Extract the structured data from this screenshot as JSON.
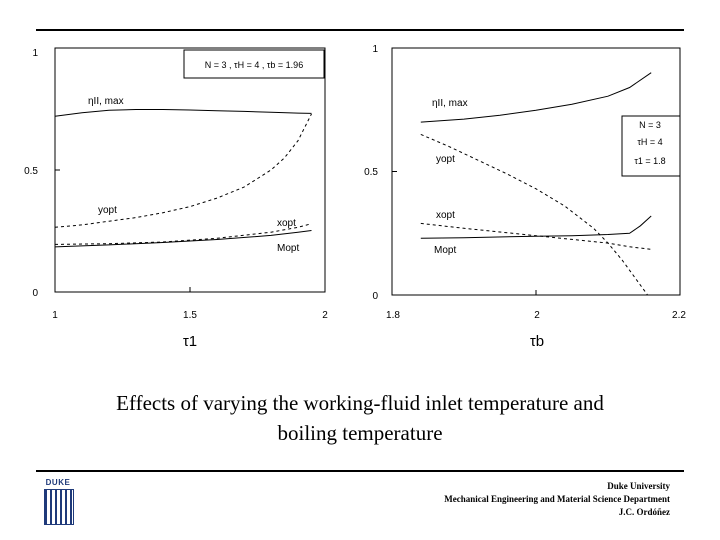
{
  "caption": {
    "line1": "Effects of varying the working-fluid inlet temperature and",
    "line2": "boiling temperature"
  },
  "footer": {
    "line1": "Duke University",
    "line2": "Mechanical Engineering and Material Science Department",
    "line3": "J.C. Ordóñez"
  },
  "logo": {
    "text": "DUKE",
    "color": "#1f3a7a"
  },
  "chart_data": [
    {
      "type": "line",
      "xlabel": "τ1",
      "ylabel": "",
      "xlim": [
        1,
        2
      ],
      "ylim": [
        0,
        1
      ],
      "xticks": [
        "1",
        "1.5",
        "2"
      ],
      "yticks": [
        "0",
        "0.5",
        "1"
      ],
      "params_box": "N = 3 ,  τH = 4 ,  τb = 1.96",
      "series": [
        {
          "name": "ηII, max",
          "style": "solid",
          "x": [
            1.0,
            1.1,
            1.2,
            1.3,
            1.4,
            1.5,
            1.6,
            1.7,
            1.8,
            1.9,
            1.95
          ],
          "y": [
            0.72,
            0.735,
            0.745,
            0.748,
            0.748,
            0.746,
            0.743,
            0.74,
            0.737,
            0.733,
            0.732
          ]
        },
        {
          "name": "yopt",
          "style": "dashed",
          "x": [
            1.0,
            1.1,
            1.2,
            1.3,
            1.4,
            1.5,
            1.6,
            1.7,
            1.8,
            1.85,
            1.9,
            1.95
          ],
          "y": [
            0.265,
            0.275,
            0.29,
            0.305,
            0.325,
            0.35,
            0.385,
            0.43,
            0.5,
            0.55,
            0.62,
            0.73
          ]
        },
        {
          "name": "xopt",
          "style": "dashed",
          "x": [
            1.0,
            1.2,
            1.4,
            1.6,
            1.8,
            1.9,
            1.95
          ],
          "y": [
            0.195,
            0.198,
            0.205,
            0.22,
            0.245,
            0.265,
            0.28
          ]
        },
        {
          "name": "Mopt",
          "style": "solid",
          "x": [
            1.0,
            1.2,
            1.4,
            1.6,
            1.8,
            1.9,
            1.95
          ],
          "y": [
            0.185,
            0.193,
            0.203,
            0.215,
            0.232,
            0.245,
            0.252
          ]
        }
      ]
    },
    {
      "type": "line",
      "xlabel": "τb",
      "ylabel": "",
      "xlim": [
        1.8,
        2.2
      ],
      "ylim": [
        0,
        1
      ],
      "xticks": [
        "1.8",
        "2",
        "2.2"
      ],
      "yticks": [
        "0",
        "0.5",
        "1"
      ],
      "params_box": [
        "N = 3",
        "τH = 4",
        "τ1 = 1.8"
      ],
      "series": [
        {
          "name": "ηII, max",
          "style": "solid",
          "x": [
            1.84,
            1.9,
            1.95,
            2.0,
            2.05,
            2.1,
            2.13,
            2.16
          ],
          "y": [
            0.7,
            0.712,
            0.728,
            0.748,
            0.772,
            0.805,
            0.84,
            0.9
          ]
        },
        {
          "name": "yopt",
          "style": "dashed",
          "x": [
            1.84,
            1.88,
            1.92,
            1.96,
            2.0,
            2.04,
            2.08,
            2.1,
            2.12,
            2.14,
            2.155
          ],
          "y": [
            0.65,
            0.6,
            0.545,
            0.49,
            0.43,
            0.36,
            0.27,
            0.21,
            0.14,
            0.06,
            0.0
          ]
        },
        {
          "name": "xopt",
          "style": "dashed",
          "x": [
            1.84,
            1.9,
            1.95,
            2.0,
            2.05,
            2.1,
            2.13,
            2.16
          ],
          "y": [
            0.29,
            0.27,
            0.255,
            0.24,
            0.225,
            0.21,
            0.195,
            0.185
          ]
        },
        {
          "name": "Mopt",
          "style": "solid",
          "x": [
            1.84,
            1.9,
            2.0,
            2.05,
            2.1,
            2.13,
            2.145,
            2.16
          ],
          "y": [
            0.23,
            0.232,
            0.238,
            0.24,
            0.245,
            0.25,
            0.28,
            0.32
          ]
        }
      ]
    }
  ]
}
